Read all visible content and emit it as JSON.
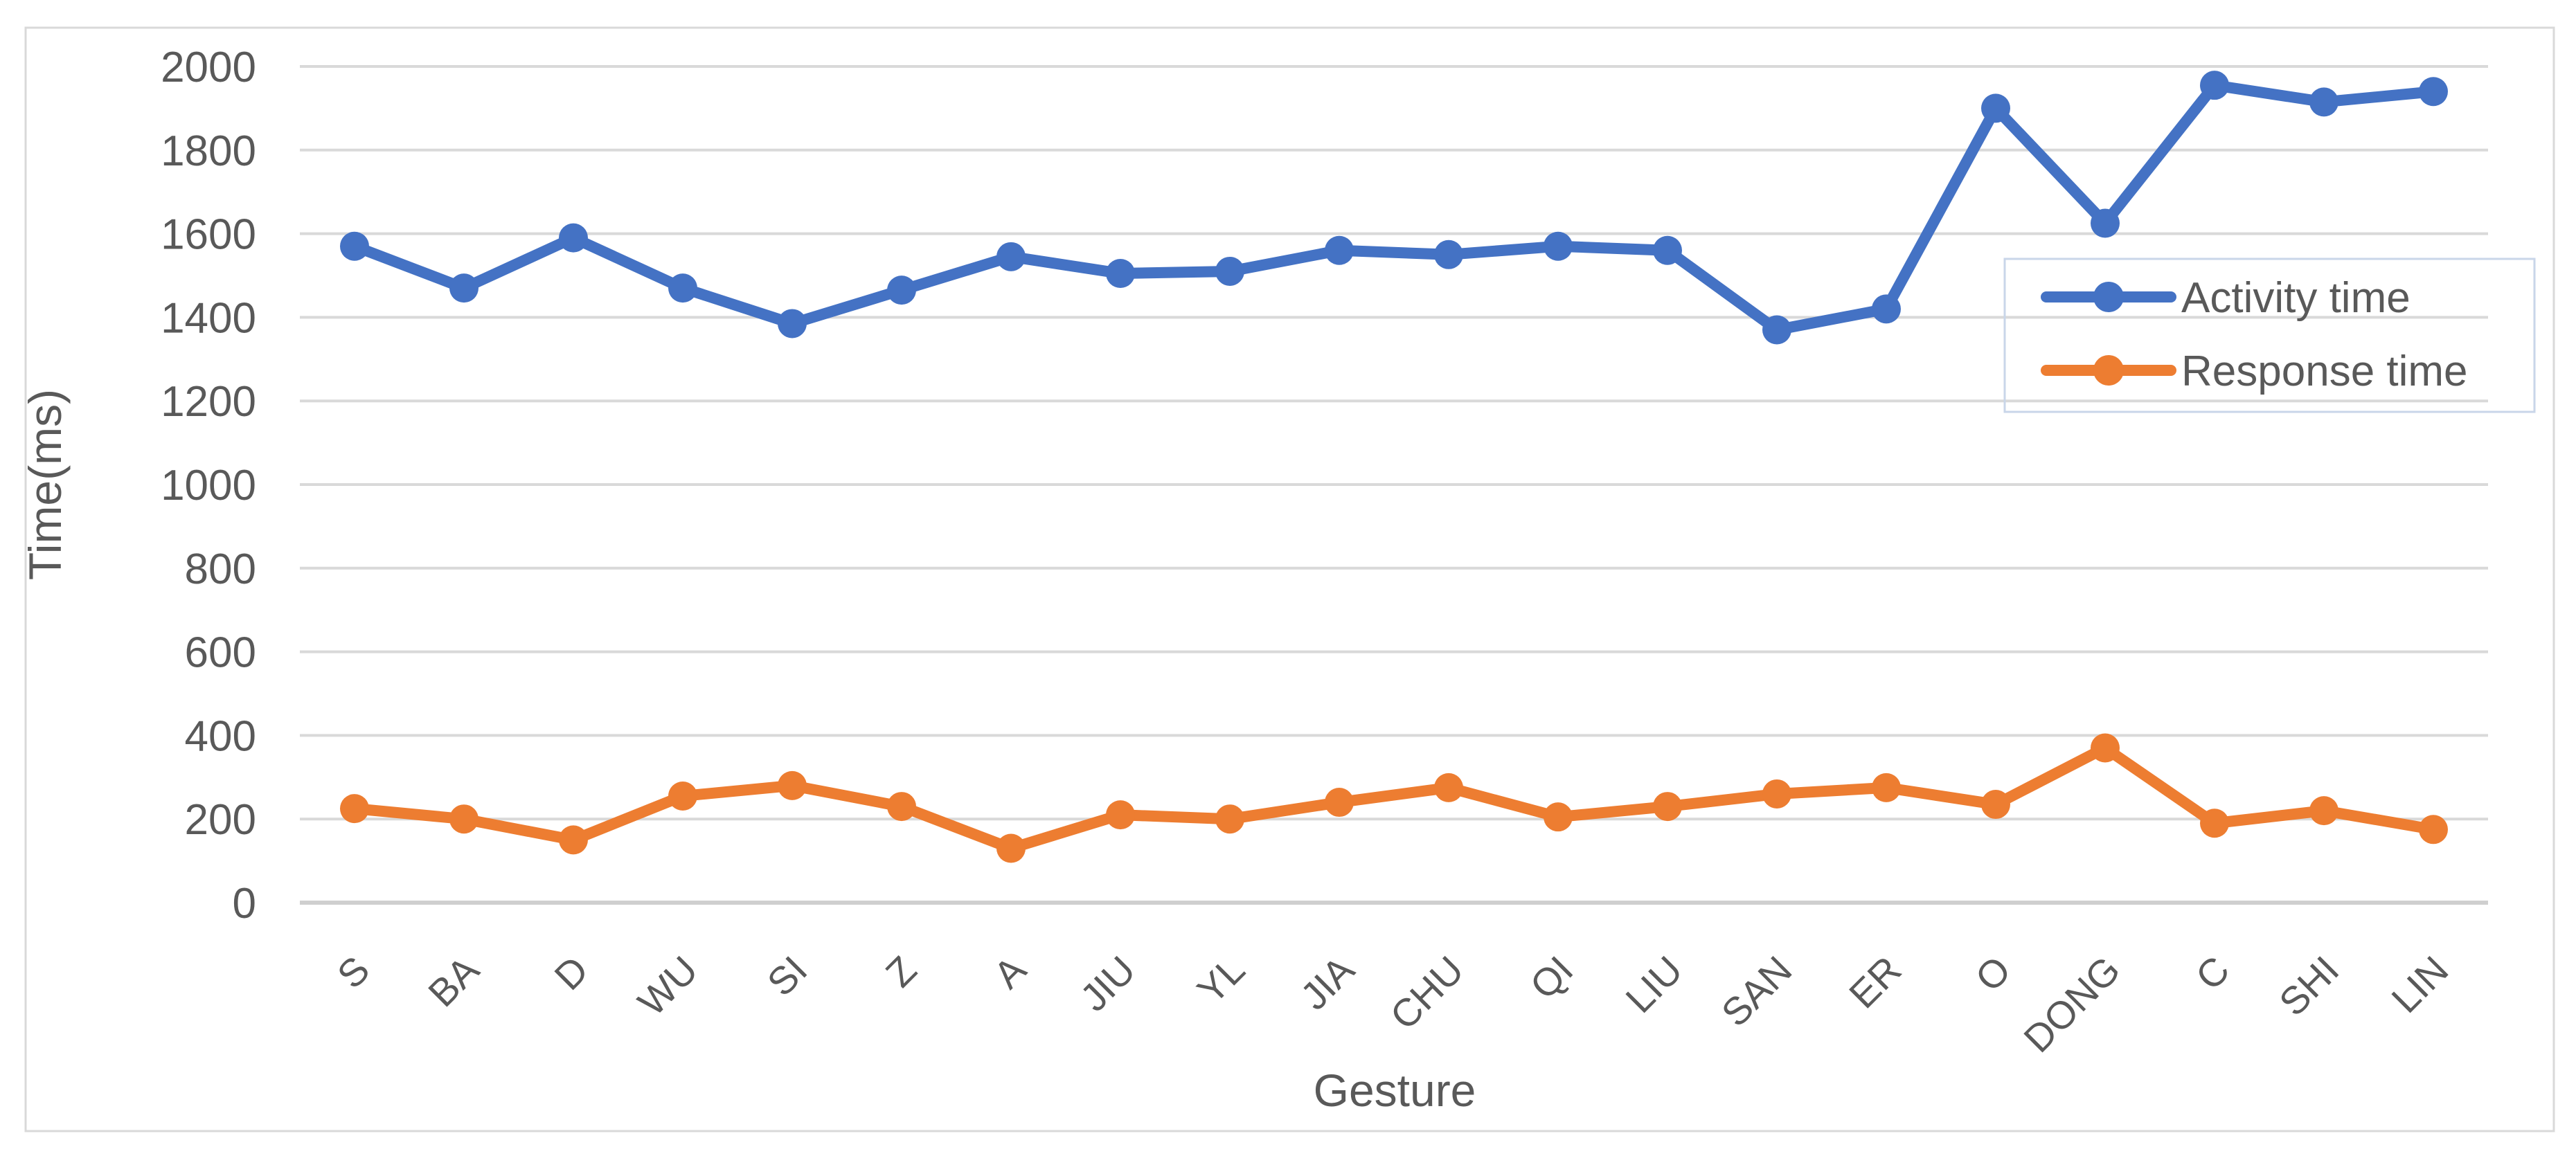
{
  "chart_data": {
    "type": "line",
    "title": "",
    "xlabel": "Gesture",
    "ylabel": "Time(ms)",
    "categories": [
      "S",
      "BA",
      "D",
      "WU",
      "SI",
      "Z",
      "A",
      "JIU",
      "YL",
      "JIA",
      "CHU",
      "QI",
      "LIU",
      "SAN",
      "ER",
      "O",
      "DONG",
      "C",
      "SHI",
      "LIN"
    ],
    "series": [
      {
        "name": "Activity time",
        "color": "#4472C4",
        "values": [
          1570,
          1470,
          1590,
          1470,
          1385,
          1465,
          1545,
          1505,
          1510,
          1560,
          1550,
          1570,
          1560,
          1370,
          1420,
          1900,
          1625,
          1955,
          1915,
          1940
        ]
      },
      {
        "name": "Response time",
        "color": "#ED7D31",
        "values": [
          225,
          200,
          150,
          255,
          280,
          230,
          130,
          210,
          200,
          240,
          275,
          205,
          230,
          260,
          275,
          235,
          370,
          190,
          220,
          175
        ]
      }
    ],
    "ylim": [
      0,
      2000
    ],
    "ytick_step": 200,
    "yticks": [
      0,
      200,
      400,
      600,
      800,
      1000,
      1200,
      1400,
      1600,
      1800,
      2000
    ],
    "grid": "horizontal",
    "legend": {
      "position": "middle-right",
      "entries": [
        "Activity time",
        "Response time"
      ]
    }
  },
  "palette": {
    "activity_blue": "#4472C4",
    "response_orange": "#ED7D31",
    "gridline": "#D9D9D9",
    "axis_line": "#CFCFCF",
    "text": "#595959",
    "frame_border": "#D9D9D9",
    "legend_border": "#C9D6E9",
    "background": "#FFFFFF"
  }
}
